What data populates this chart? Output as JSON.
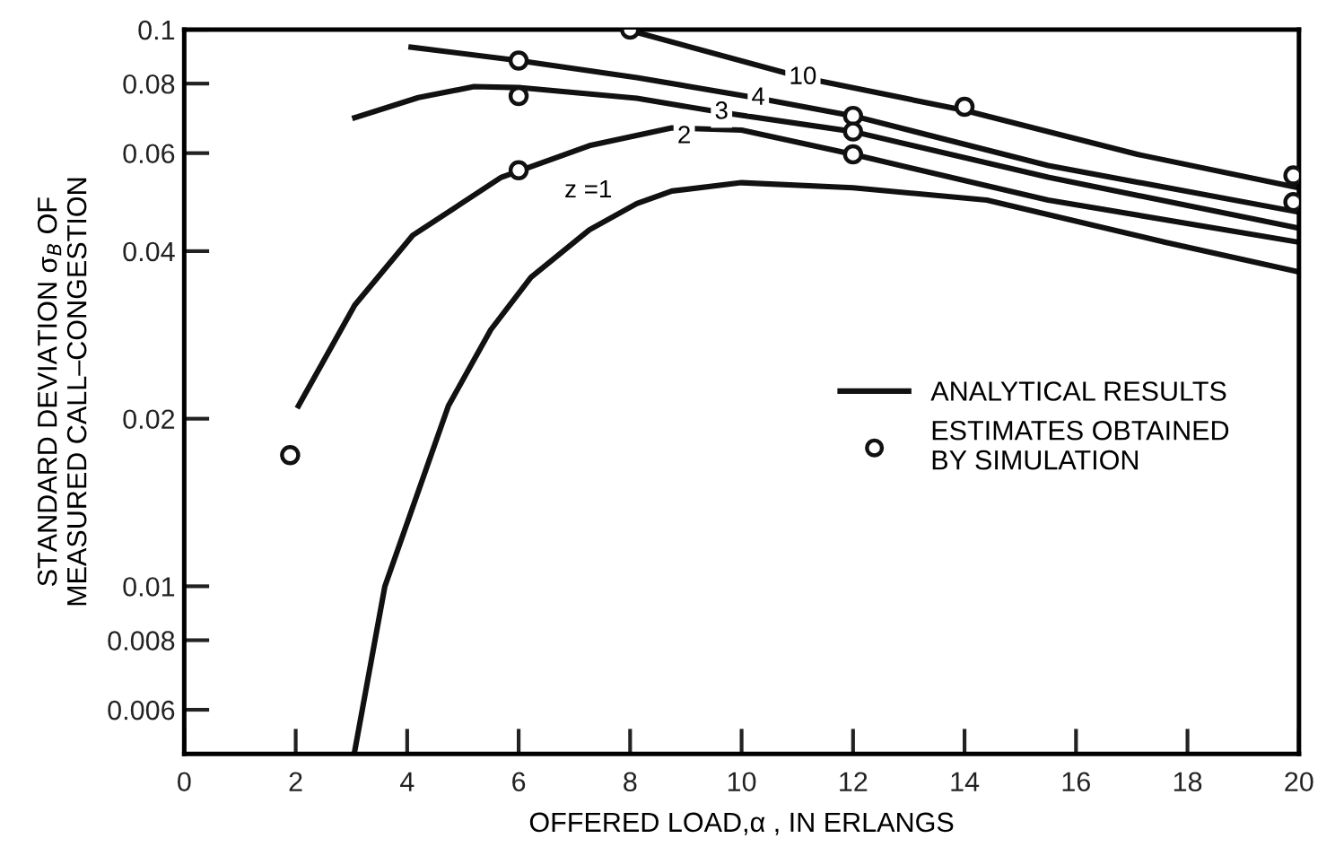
{
  "chart_data": {
    "type": "line",
    "xlabel": "OFFERED LOAD,α , IN ERLANGS",
    "ylabel": "STANDARD DEVIATION σ$_{B}$ OF\nMEASURED CALL–CONGESTION",
    "log": "y",
    "xlim": [
      0,
      20
    ],
    "xticks": [
      0,
      2,
      4,
      6,
      8,
      10,
      12,
      14,
      16,
      18,
      20
    ],
    "ylim": [
      0.005,
      0.1
    ],
    "yticks": [
      0.006,
      0.008,
      0.01,
      0.02,
      0.04,
      0.06,
      0.08,
      0.1
    ],
    "grid": false,
    "legend": "center right",
    "line_style": "solid",
    "series": [
      {
        "name": "ANALYTICAL RESULTS",
        "color": "#111111",
        "x": [
          3.05,
          3.6,
          4.74,
          5.5,
          6.22,
          7.27,
          8.12,
          8.75,
          10.0,
          12.0,
          14.4,
          17.6,
          20.0
        ],
        "values": [
          0.005,
          0.01,
          0.0211,
          0.0289,
          0.0359,
          0.0437,
          0.0487,
          0.0513,
          0.0531,
          0.052,
          0.0494,
          0.0415,
          0.0367
        ]
      },
      {
        "color": "#111111",
        "x": [
          2.05,
          3.06,
          4.1,
          5.69,
          7.27,
          8.75,
          10.0,
          12.0,
          15.5,
          20.0
        ],
        "values": [
          0.0211,
          0.032,
          0.0427,
          0.0543,
          0.0619,
          0.0666,
          0.066,
          0.0597,
          0.0494,
          0.0415
        ]
      },
      {
        "color": "#111111",
        "x": [
          3.06,
          4.2,
          5.2,
          6.0,
          8.12,
          9.64,
          12.0,
          15.5,
          20.0
        ],
        "values": [
          0.0695,
          0.0755,
          0.079,
          0.0787,
          0.0753,
          0.071,
          0.0656,
          0.0543,
          0.044
        ]
      },
      {
        "color": "#111111",
        "x": [
          4.07,
          6.0,
          8.12,
          10.3,
          12.0,
          15.5,
          20.0
        ],
        "values": [
          0.093,
          0.088,
          0.082,
          0.0753,
          0.07,
          0.057,
          0.047
        ]
      },
      {
        "color": "#111111",
        "x": [
          8.0,
          8.1,
          11.1,
          14.0,
          17.1,
          20.0
        ],
        "values": [
          0.1,
          0.099,
          0.082,
          0.0716,
          0.0597,
          0.052
        ]
      },
      {
        "name": "ESTIMATES OBTAINED\nBY SIMULATION",
        "type": "scatter",
        "marker": "circle",
        "color": "#111111",
        "x": [
          1.9,
          6,
          6,
          6,
          8,
          12,
          12,
          12,
          14,
          19.9,
          19.9
        ],
        "values": [
          0.0172,
          0.088,
          0.076,
          0.0559,
          0.1,
          0.07,
          0.0656,
          0.0597,
          0.0727,
          0.0547,
          0.049
        ]
      }
    ],
    "annotations": [
      {
        "text": "z =1",
        "x": 7.25,
        "y": 0.0513
      },
      {
        "text": "2",
        "x": 8.97,
        "y": 0.0642
      },
      {
        "text": "3",
        "x": 9.64,
        "y": 0.071
      },
      {
        "text": "4",
        "x": 10.3,
        "y": 0.0753
      },
      {
        "text": "10",
        "x": 11.1,
        "y": 0.082
      }
    ]
  }
}
